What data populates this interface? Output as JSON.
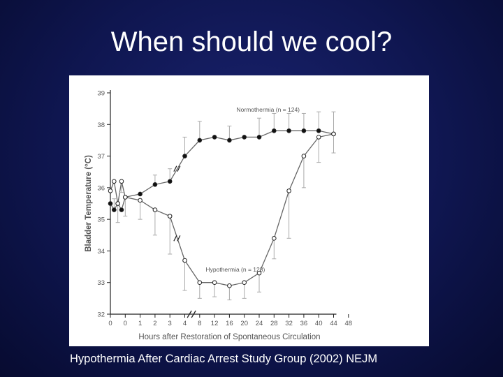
{
  "slide": {
    "title": "When should we cool?",
    "caption": "Hypothermia After Cardiac Arrest Study Group (2002) NEJM"
  },
  "colors": {
    "background": "#0f1650",
    "title_text": "#ffffff",
    "panel": "#ffffff",
    "axis": "#222222",
    "series_line": "#666666",
    "errorbar": "#aaaaaa",
    "label_text": "#555555"
  },
  "chart_data": {
    "type": "line",
    "title": "",
    "xlabel": "Hours after Restoration of Spontaneous Circulation",
    "ylabel": "Bladder Temperature (°C)",
    "ylim": [
      32,
      39
    ],
    "y_ticks": [
      "32",
      "33",
      "34",
      "35",
      "36",
      "37",
      "38",
      "39"
    ],
    "x_tick_labels": [
      "0",
      "0",
      "1",
      "2",
      "3",
      "4",
      "8",
      "12",
      "16",
      "20",
      "24",
      "28",
      "32",
      "36",
      "40",
      "44",
      "48"
    ],
    "x_tick_slots": [
      0,
      1,
      2,
      3,
      4,
      5,
      6,
      7,
      8,
      9,
      10,
      11,
      12,
      13,
      14,
      15,
      16
    ],
    "axis_breaks_on_slot": 5.5,
    "series": [
      {
        "name": "Normothermia (n=124)",
        "marker": "filled",
        "points": [
          {
            "slot": 0.0,
            "y": 35.5,
            "err": 0
          },
          {
            "slot": 0.25,
            "y": 35.3,
            "err": 0.35
          },
          {
            "slot": 0.5,
            "y": 35.5,
            "err": 0
          },
          {
            "slot": 0.75,
            "y": 35.3,
            "err": 0
          },
          {
            "slot": 1.0,
            "y": 35.7,
            "err": 0
          },
          {
            "slot": 2.0,
            "y": 35.8,
            "err": 0
          },
          {
            "slot": 3.0,
            "y": 36.1,
            "err": 0.3
          },
          {
            "slot": 4.0,
            "y": 36.2,
            "err": 0.4
          },
          {
            "slot": 5.0,
            "y": 37.0,
            "err": 0.6
          },
          {
            "slot": 6.0,
            "y": 37.5,
            "err": 0.6
          },
          {
            "slot": 7.0,
            "y": 37.6,
            "err": 0
          },
          {
            "slot": 8.0,
            "y": 37.5,
            "err": 0.45
          },
          {
            "slot": 9.0,
            "y": 37.6,
            "err": 0
          },
          {
            "slot": 10.0,
            "y": 37.6,
            "err": 0.6
          },
          {
            "slot": 11.0,
            "y": 37.8,
            "err": 0.55
          },
          {
            "slot": 12.0,
            "y": 37.8,
            "err": 0.55
          },
          {
            "slot": 13.0,
            "y": 37.8,
            "err": 0.55
          },
          {
            "slot": 14.0,
            "y": 37.8,
            "err": 0.6
          },
          {
            "slot": 15.0,
            "y": 37.7,
            "err": 0.7
          }
        ]
      },
      {
        "name": "Hypothermia (n=123)",
        "marker": "open",
        "points": [
          {
            "slot": 0.0,
            "y": 35.9,
            "err": 0
          },
          {
            "slot": 0.25,
            "y": 36.2,
            "err": 0
          },
          {
            "slot": 0.5,
            "y": 35.5,
            "err": 0.6
          },
          {
            "slot": 0.75,
            "y": 36.2,
            "err": 0.35
          },
          {
            "slot": 1.0,
            "y": 35.7,
            "err": 0.6
          },
          {
            "slot": 2.0,
            "y": 35.6,
            "err": 0.6
          },
          {
            "slot": 3.0,
            "y": 35.3,
            "err": 0.8
          },
          {
            "slot": 4.0,
            "y": 35.1,
            "err": 1.2
          },
          {
            "slot": 5.0,
            "y": 33.7,
            "err": 0.95
          },
          {
            "slot": 6.0,
            "y": 33.0,
            "err": 0.5
          },
          {
            "slot": 7.0,
            "y": 33.0,
            "err": 0.45
          },
          {
            "slot": 8.0,
            "y": 32.9,
            "err": 0.45
          },
          {
            "slot": 9.0,
            "y": 33.0,
            "err": 0.5
          },
          {
            "slot": 10.0,
            "y": 33.3,
            "err": 0.6
          },
          {
            "slot": 11.0,
            "y": 34.4,
            "err": 0.65
          },
          {
            "slot": 12.0,
            "y": 35.9,
            "err": 1.5
          },
          {
            "slot": 13.0,
            "y": 37.0,
            "err": 1.0
          },
          {
            "slot": 14.0,
            "y": 37.6,
            "err": 0.8
          },
          {
            "slot": 15.0,
            "y": 37.7,
            "err": 0.6
          }
        ]
      }
    ],
    "annotations": [
      {
        "text": "Normothermia (n = 124)",
        "anchor_slot": 10.6,
        "anchor_y": 38.4
      },
      {
        "text": "Hypothermia (n = 123)",
        "anchor_slot": 8.4,
        "anchor_y": 33.35
      }
    ]
  }
}
